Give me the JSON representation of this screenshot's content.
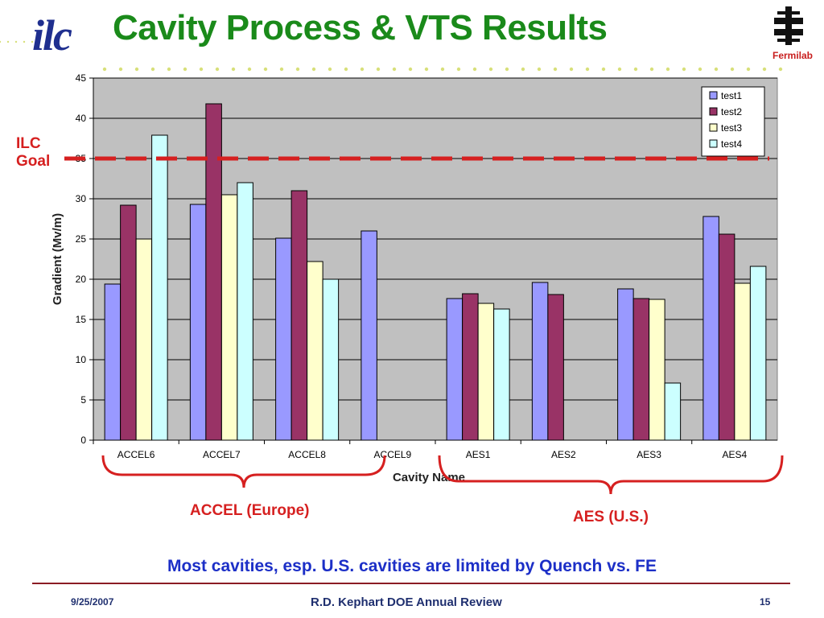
{
  "slide": {
    "title": "Cavity Process & VTS Results",
    "logo_ilc": "ilc",
    "logo_fermilab": "Fermilab",
    "ilc_goal_label": "ILC Goal",
    "group_accel_label": "ACCEL (Europe)",
    "group_aes_label": "AES (U.S.)",
    "caption": "Most cavities, esp. U.S. cavities are limited by Quench vs. FE",
    "footer_date": "9/25/2007",
    "footer_center": "R.D. Kephart DOE Annual Review",
    "footer_page": "15"
  },
  "colors": {
    "title": "#1a8a1a",
    "accent_red": "#d62020",
    "caption_blue": "#1c2fc7",
    "plot_bg": "#c0c0c0"
  },
  "chart_data": {
    "type": "bar",
    "xlabel": "Cavity Name",
    "ylabel": "Gradient (Mv/m)",
    "ylim": [
      0,
      45
    ],
    "yticks": [
      0,
      5,
      10,
      15,
      20,
      25,
      30,
      35,
      40,
      45
    ],
    "grid": true,
    "legend_position": "top-right",
    "categories": [
      "ACCEL6",
      "ACCEL7",
      "ACCEL8",
      "ACCEL9",
      "AES1",
      "AES2",
      "AES3",
      "AES4"
    ],
    "series": [
      {
        "name": "test1",
        "color": "#9999ff",
        "values": [
          19.4,
          29.3,
          25.1,
          26.0,
          17.6,
          19.6,
          18.8,
          27.8
        ]
      },
      {
        "name": "test2",
        "color": "#993366",
        "values": [
          29.2,
          41.8,
          31.0,
          null,
          18.2,
          18.1,
          17.6,
          25.6
        ]
      },
      {
        "name": "test3",
        "color": "#ffffcc",
        "values": [
          25.0,
          30.5,
          22.2,
          null,
          17.0,
          null,
          17.5,
          19.5
        ]
      },
      {
        "name": "test4",
        "color": "#ccffff",
        "values": [
          37.9,
          32.0,
          20.0,
          null,
          16.3,
          null,
          7.1,
          21.6
        ]
      }
    ],
    "goal_line": 35
  }
}
